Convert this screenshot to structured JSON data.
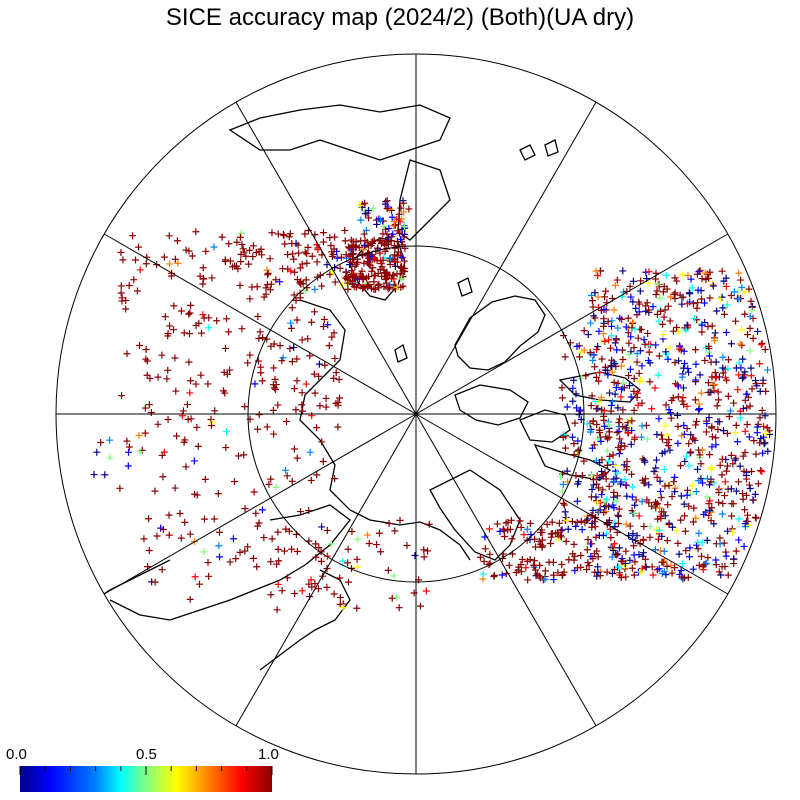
{
  "title": "SICE accuracy map (2024/2) (Both)(UA dry)",
  "colorbar": {
    "labels": [
      "0.0",
      "0.5",
      "1.0"
    ],
    "colors": [
      "#00008b",
      "#0000ff",
      "#0080ff",
      "#00ffff",
      "#80ff80",
      "#ffff00",
      "#ff8000",
      "#ff0000",
      "#8b0000"
    ]
  },
  "colors": {
    "background": "#ffffff",
    "lines": "#000000",
    "high_accuracy": "#8b0000",
    "low_accuracy": "#00008b"
  }
}
